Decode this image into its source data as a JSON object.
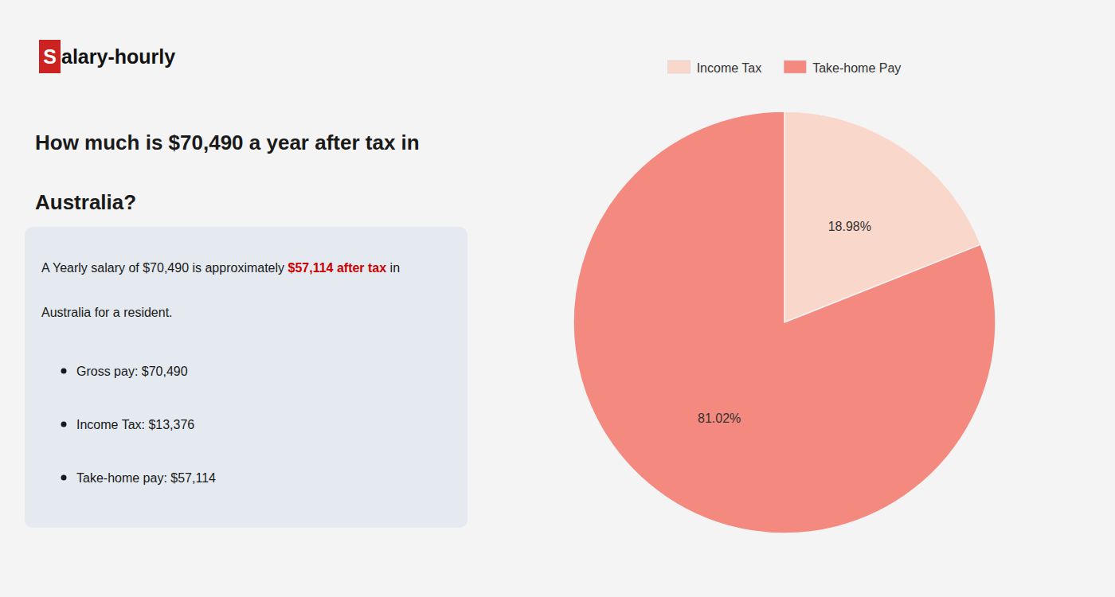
{
  "chart_data": {
    "type": "pie",
    "title": [
      "How much is $70,490 a year after tax in",
      "Australia?"
    ],
    "annotations": [
      {
        "text": "S",
        "color": "#cc2222"
      },
      "alary-hourly",
      "A Yearly salary of $70,490 is approximately ",
      {
        "text": "$57,114 after tax",
        "color": "#cc0000"
      },
      " in",
      "Australia for a resident.",
      "Gross pay: $70,490",
      "Income Tax: $13,376",
      "Take-home pay: $57,114"
    ],
    "categories": [
      "Income Tax",
      "Take-home Pay"
    ],
    "values": [
      18.98,
      81.02
    ],
    "value_labels": [
      "18.98%",
      "81.02%"
    ],
    "colors": [
      "#f9d8cb",
      "#f4897f"
    ],
    "data_labels": true,
    "legend": "top"
  }
}
